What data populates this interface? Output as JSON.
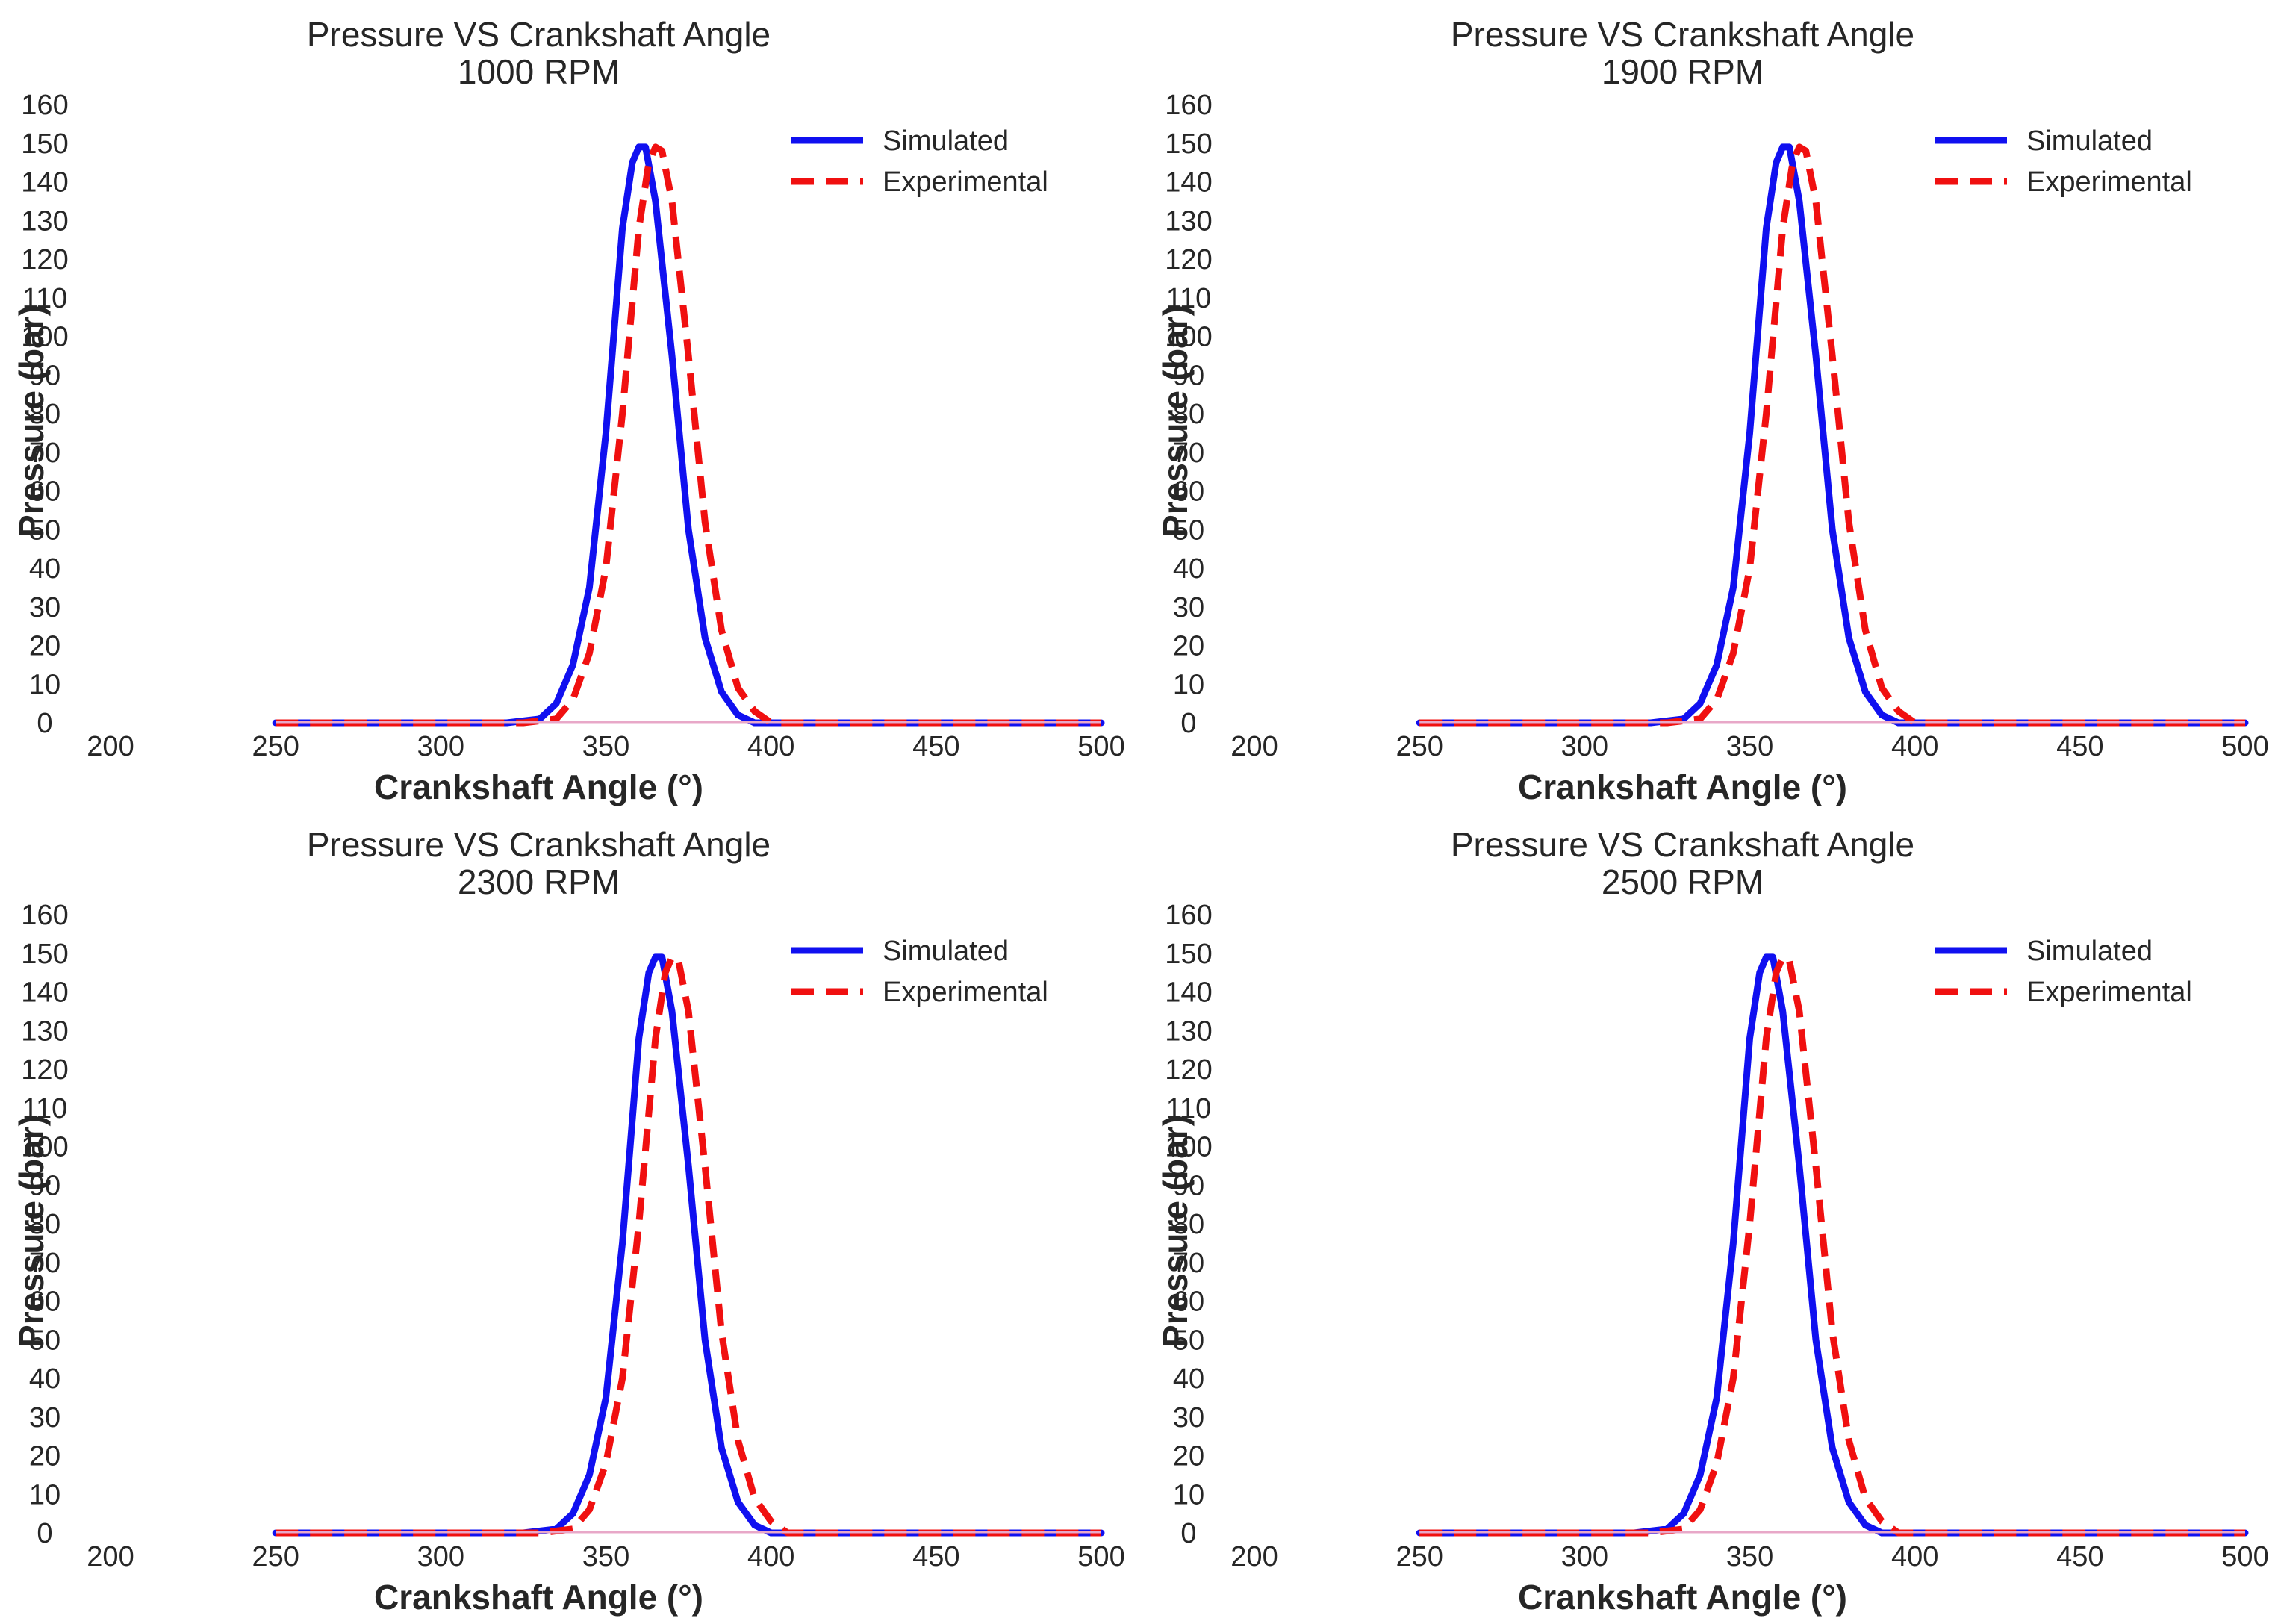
{
  "figure": {
    "colors": {
      "simulated": "#1010f0",
      "experimental": "#f01010",
      "baseline": "#e8a8c8"
    }
  },
  "chart_data": [
    {
      "type": "line",
      "title": "Pressure VS Crankshaft Angle",
      "subtitle": "1000 RPM",
      "xlabel": "Crankshaft Angle (°)",
      "ylabel": "Pressure (bar)",
      "xlim": [
        200,
        500
      ],
      "ylim": [
        0,
        160
      ],
      "xticks": [
        200,
        250,
        300,
        350,
        400,
        450,
        500
      ],
      "yticks": [
        0,
        10,
        20,
        30,
        40,
        50,
        60,
        70,
        80,
        90,
        100,
        110,
        120,
        130,
        140,
        150,
        160
      ],
      "grid": false,
      "legend": "top-right",
      "series": [
        {
          "name": "Simulated",
          "style": "solid",
          "color": "#1010f0",
          "x": [
            250,
            320,
            330,
            335,
            340,
            345,
            350,
            355,
            358,
            360,
            362,
            365,
            370,
            375,
            380,
            385,
            390,
            395,
            400,
            500
          ],
          "y": [
            0,
            0,
            1,
            5,
            15,
            35,
            75,
            128,
            145,
            149,
            149,
            135,
            95,
            50,
            22,
            8,
            2,
            0,
            0,
            0
          ]
        },
        {
          "name": "Experimental",
          "style": "dashed",
          "color": "#f01010",
          "x": [
            250,
            325,
            335,
            340,
            345,
            350,
            355,
            360,
            363,
            365,
            367,
            370,
            375,
            380,
            385,
            390,
            395,
            400,
            405,
            500
          ],
          "y": [
            0,
            0,
            1,
            6,
            18,
            40,
            80,
            128,
            145,
            149,
            148,
            135,
            95,
            52,
            24,
            9,
            3,
            0,
            0,
            0
          ]
        }
      ]
    },
    {
      "type": "line",
      "title": "Pressure VS Crankshaft Angle",
      "subtitle": "1900 RPM",
      "xlabel": "Crankshaft Angle (°)",
      "ylabel": "Pressure (bar)",
      "xlim": [
        200,
        500
      ],
      "ylim": [
        0,
        160
      ],
      "xticks": [
        200,
        250,
        300,
        350,
        400,
        450,
        500
      ],
      "yticks": [
        0,
        10,
        20,
        30,
        40,
        50,
        60,
        70,
        80,
        90,
        100,
        110,
        120,
        130,
        140,
        150,
        160
      ],
      "grid": false,
      "legend": "top-right",
      "series": [
        {
          "name": "Simulated",
          "style": "solid",
          "color": "#1010f0",
          "x": [
            250,
            320,
            330,
            335,
            340,
            345,
            350,
            355,
            358,
            360,
            362,
            365,
            370,
            375,
            380,
            385,
            390,
            395,
            400,
            500
          ],
          "y": [
            0,
            0,
            1,
            5,
            15,
            35,
            75,
            128,
            145,
            149,
            149,
            135,
            95,
            50,
            22,
            8,
            2,
            0,
            0,
            0
          ]
        },
        {
          "name": "Experimental",
          "style": "dashed",
          "color": "#f01010",
          "x": [
            250,
            325,
            335,
            340,
            345,
            350,
            355,
            360,
            363,
            365,
            367,
            370,
            375,
            380,
            385,
            390,
            395,
            400,
            405,
            500
          ],
          "y": [
            0,
            0,
            1,
            6,
            18,
            40,
            80,
            128,
            145,
            149,
            148,
            135,
            95,
            52,
            24,
            9,
            3,
            0,
            0,
            0
          ]
        }
      ]
    },
    {
      "type": "line",
      "title": "Pressure VS Crankshaft Angle",
      "subtitle": "2300 RPM",
      "xlabel": "Crankshaft Angle (°)",
      "ylabel": "Pressure (bar)",
      "xlim": [
        200,
        500
      ],
      "ylim": [
        0,
        160
      ],
      "xticks": [
        200,
        250,
        300,
        350,
        400,
        450,
        500
      ],
      "yticks": [
        0,
        10,
        20,
        30,
        40,
        50,
        60,
        70,
        80,
        90,
        100,
        110,
        120,
        130,
        140,
        150,
        160
      ],
      "grid": false,
      "legend": "top-right",
      "series": [
        {
          "name": "Simulated",
          "style": "solid",
          "color": "#1010f0",
          "x": [
            250,
            325,
            335,
            340,
            345,
            350,
            355,
            360,
            363,
            365,
            367,
            370,
            375,
            380,
            385,
            390,
            395,
            400,
            405,
            500
          ],
          "y": [
            0,
            0,
            1,
            5,
            15,
            35,
            75,
            128,
            145,
            149,
            149,
            135,
            95,
            50,
            22,
            8,
            2,
            0,
            0,
            0
          ]
        },
        {
          "name": "Experimental",
          "style": "dashed",
          "color": "#f01010",
          "x": [
            250,
            330,
            340,
            345,
            350,
            355,
            360,
            365,
            368,
            370,
            372,
            375,
            380,
            385,
            390,
            395,
            400,
            405,
            410,
            500
          ],
          "y": [
            0,
            0,
            1,
            6,
            18,
            40,
            80,
            128,
            145,
            149,
            148,
            135,
            95,
            52,
            24,
            9,
            3,
            0,
            0,
            0
          ]
        }
      ]
    },
    {
      "type": "line",
      "title": "Pressure VS Crankshaft Angle",
      "subtitle": "2500 RPM",
      "xlabel": "Crankshaft Angle (°)",
      "ylabel": "Pressure (bar)",
      "xlim": [
        200,
        500
      ],
      "ylim": [
        0,
        160
      ],
      "xticks": [
        200,
        250,
        300,
        350,
        400,
        450,
        500
      ],
      "yticks": [
        0,
        10,
        20,
        30,
        40,
        50,
        60,
        70,
        80,
        90,
        100,
        110,
        120,
        130,
        140,
        150,
        160
      ],
      "grid": false,
      "legend": "top-right",
      "series": [
        {
          "name": "Simulated",
          "style": "solid",
          "color": "#1010f0",
          "x": [
            250,
            315,
            325,
            330,
            335,
            340,
            345,
            350,
            353,
            355,
            357,
            360,
            365,
            370,
            375,
            380,
            385,
            390,
            395,
            500
          ],
          "y": [
            0,
            0,
            1,
            5,
            15,
            35,
            75,
            128,
            145,
            149,
            149,
            135,
            95,
            50,
            22,
            8,
            2,
            0,
            0,
            0
          ]
        },
        {
          "name": "Experimental",
          "style": "dashed",
          "color": "#f01010",
          "x": [
            250,
            320,
            330,
            335,
            340,
            345,
            350,
            355,
            358,
            360,
            362,
            365,
            370,
            375,
            380,
            385,
            390,
            395,
            400,
            500
          ],
          "y": [
            0,
            0,
            1,
            6,
            18,
            40,
            80,
            128,
            145,
            149,
            148,
            135,
            95,
            52,
            24,
            9,
            3,
            0,
            0,
            0
          ]
        }
      ]
    }
  ]
}
